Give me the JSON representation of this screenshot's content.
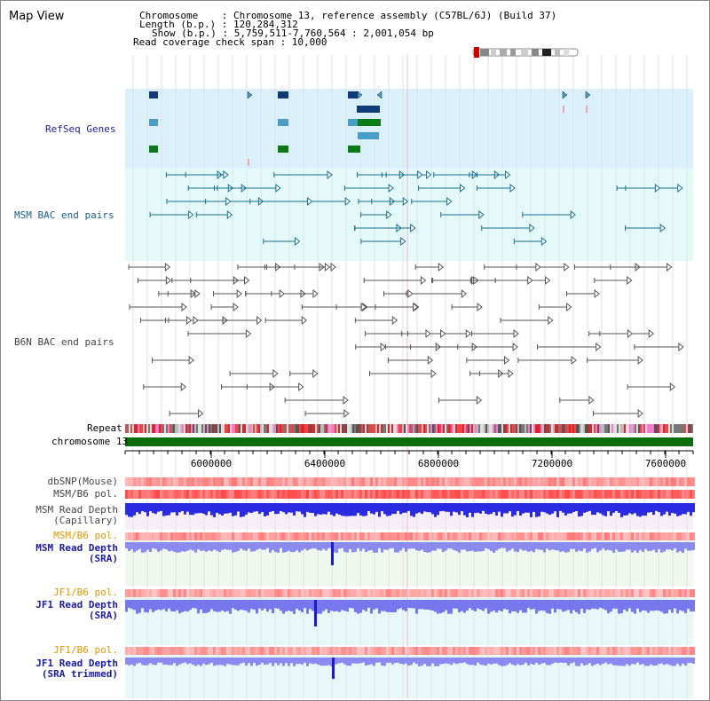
{
  "window": {
    "title": "Map View"
  },
  "info": {
    "chromosome": "Chromosome    : Chromosome 13, reference assembly (C57BL/6J) (Build 37)",
    "length": "Length (b.p.) : 120,284,312",
    "show": "Show (b.p.) : 5,759,511-7,760,564 : 2,001,054 bp",
    "coverage": "Read coverage check span : 10,000"
  },
  "tracks": {
    "refseq": "RefSeq Genes",
    "msm_bac": "MSM BAC end pairs",
    "b6n_bac": "B6N BAC end pairs",
    "repeat": "Repeat",
    "chromosome": "chromosome 13",
    "dbsnp": "dbSNP(Mouse)",
    "msm_b6_pol_1": "MSM/B6 pol.",
    "msm_depth_cap_1": "MSM Read Depth",
    "msm_depth_cap_2": "(Capillary)",
    "msm_b6_pol_2": "MSM/B6 pol.",
    "msm_depth_sra_1": "MSM Read Depth",
    "msm_depth_sra_2": "(SRA)",
    "jf1_b6_pol_1": "JF1/B6 pol.",
    "jf1_depth_sra_1": "JF1 Read Depth",
    "jf1_depth_sra_2": "(SRA)",
    "jf1_b6_pol_2": "JF1/B6 pol.",
    "jf1_depth_trim_1": "JF1 Read Depth",
    "jf1_depth_trim_2": "(SRA trimmed)"
  },
  "axis": {
    "ticks": [
      "6000000",
      "6400000",
      "6800000",
      "7200000",
      "7600000"
    ]
  },
  "colors": {
    "refseq_bg": "#daf1fb",
    "bac_bg": "#e4fafa",
    "gene_dark": "#0f3c78",
    "gene_green": "#0a7a14",
    "gene_light": "#4a9cc9",
    "msm_label": "#1a5f8a",
    "b6n_label": "#444444",
    "blue_label": "#1a1aa8",
    "orange_label": "#e69500",
    "chrom_green": "#0b6e0b"
  }
}
